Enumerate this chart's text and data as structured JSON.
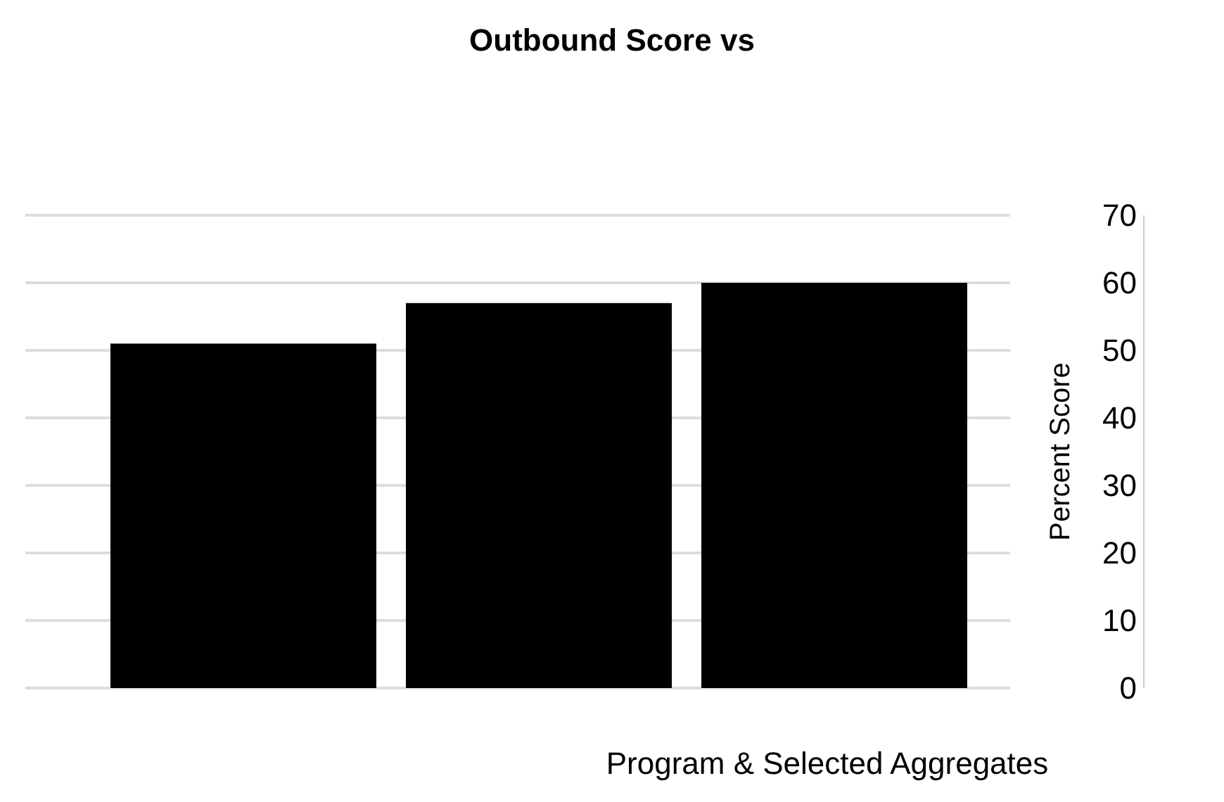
{
  "chart_data": {
    "type": "bar",
    "title": "Outbound Score vs",
    "xlabel": "Program & Selected Aggregates",
    "ylabel": "Percent Score",
    "categories": [
      null,
      null,
      null
    ],
    "values": [
      51,
      57,
      60
    ],
    "color": "#000000",
    "ylim": [
      0,
      70
    ],
    "yticks": [
      0,
      10,
      20,
      30,
      40,
      50,
      60,
      70
    ],
    "grid": "y"
  }
}
